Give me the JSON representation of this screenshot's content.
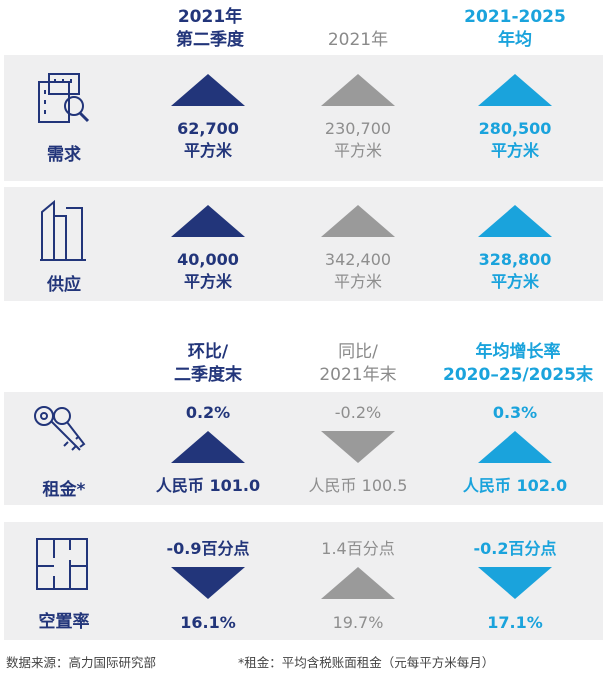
{
  "headers_top": {
    "col1_line1": "2021年",
    "col1_line2": "第二季度",
    "col2": "2021年",
    "col3_line1": "2021-2025",
    "col3_line2": "年均"
  },
  "rows_top": [
    {
      "label": "需求",
      "icon": "building-search-icon",
      "col1_value": "62,700",
      "col1_unit": "平方米",
      "col2_value": "230,700",
      "col2_unit": "平方米",
      "col3_value": "280,500",
      "col3_unit": "平方米"
    },
    {
      "label": "供应",
      "icon": "tower-buildings-icon",
      "col1_value": "40,000",
      "col1_unit": "平方米",
      "col2_value": "342,400",
      "col2_unit": "平方米",
      "col3_value": "328,800",
      "col3_unit": "平方米"
    }
  ],
  "headers_bottom": {
    "col1_line1": "环比/",
    "col1_line2": "二季度末",
    "col2_line1": "同比/",
    "col2_line2": "2021年末",
    "col3_line1": "年均增长率",
    "col3_line2": "2020–25/2025末"
  },
  "rows_bottom": [
    {
      "label": "租金*",
      "icon": "keys-icon",
      "col1_change": "0.2%",
      "col1_value": "人民币 101.0",
      "col2_change": "-0.2%",
      "col2_value": "人民币 100.5",
      "col3_change": "0.3%",
      "col3_value": "人民币 102.0"
    },
    {
      "label": "空置率",
      "icon": "floor-plan-icon",
      "col1_change": "-0.9百分点",
      "col1_value": "16.1%",
      "col2_change": "1.4百分点",
      "col2_value": "19.7%",
      "col3_change": "-0.2百分点",
      "col3_value": "17.1%"
    }
  ],
  "footer": {
    "source": "数据来源：高力国际研究部",
    "note": "*租金：平均含税账面租金（元每平方米每月）"
  },
  "colors": {
    "navy": "#22357a",
    "grey": "#9a9a9a",
    "cyan": "#1aa3dc",
    "panel": "#efeff0"
  }
}
